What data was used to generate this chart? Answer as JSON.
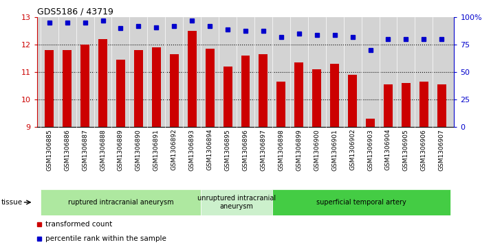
{
  "title": "GDS5186 / 43719",
  "samples": [
    "GSM1306885",
    "GSM1306886",
    "GSM1306887",
    "GSM1306888",
    "GSM1306889",
    "GSM1306890",
    "GSM1306891",
    "GSM1306892",
    "GSM1306893",
    "GSM1306894",
    "GSM1306895",
    "GSM1306896",
    "GSM1306897",
    "GSM1306898",
    "GSM1306899",
    "GSM1306900",
    "GSM1306901",
    "GSM1306902",
    "GSM1306903",
    "GSM1306904",
    "GSM1306905",
    "GSM1306906",
    "GSM1306907"
  ],
  "bar_values": [
    11.8,
    11.8,
    12.0,
    12.2,
    11.45,
    11.8,
    11.9,
    11.65,
    12.5,
    11.85,
    11.2,
    11.6,
    11.65,
    10.65,
    11.35,
    11.1,
    11.3,
    10.9,
    9.3,
    10.55,
    10.6,
    10.65,
    10.55
  ],
  "percentile_values": [
    95,
    95,
    95,
    97,
    90,
    92,
    91,
    92,
    97,
    92,
    89,
    88,
    88,
    82,
    85,
    84,
    84,
    82,
    70,
    80,
    80,
    80,
    80
  ],
  "bar_color": "#cc0000",
  "percentile_color": "#0000cc",
  "ylim_left": [
    9,
    13
  ],
  "ylim_right": [
    0,
    100
  ],
  "yticks_left": [
    9,
    10,
    11,
    12,
    13
  ],
  "yticks_right": [
    0,
    25,
    50,
    75,
    100
  ],
  "ytick_labels_right": [
    "0",
    "25",
    "50",
    "75",
    "100%"
  ],
  "groups": [
    {
      "label": "ruptured intracranial aneurysm",
      "start": 0,
      "end": 8,
      "color": "#aee8a0"
    },
    {
      "label": "unruptured intracranial\naneurysm",
      "start": 9,
      "end": 12,
      "color": "#ccf0cc"
    },
    {
      "label": "superficial temporal artery",
      "start": 13,
      "end": 22,
      "color": "#44cc44"
    }
  ],
  "tissue_label": "tissue",
  "legend_items": [
    {
      "color": "#cc0000",
      "label": "transformed count"
    },
    {
      "color": "#0000cc",
      "label": "percentile rank within the sample"
    }
  ],
  "plot_bg_color": "#d3d3d3",
  "xtick_bg_color": "#d3d3d3",
  "title_fontsize": 9,
  "bar_width": 0.5
}
